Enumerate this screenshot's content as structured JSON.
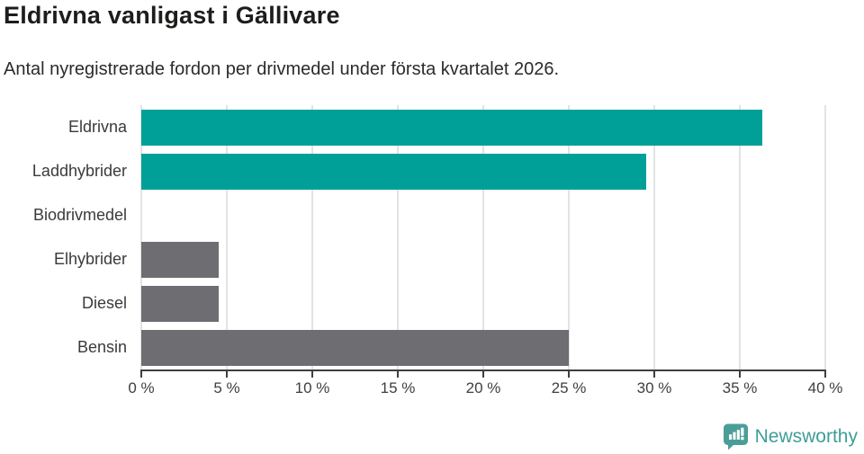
{
  "header": {
    "title": "Eldrivna vanligast i Gällivare",
    "subtitle": "Antal nyregistrerade fordon per drivmedel under första kvartalet 2026."
  },
  "chart_data": {
    "type": "bar",
    "orientation": "horizontal",
    "title": "Eldrivna vanligast i Gällivare",
    "subtitle": "Antal nyregistrerade fordon per drivmedel under första kvartalet 2026.",
    "categories": [
      "Eldrivna",
      "Laddhybrider",
      "Biodrivmedel",
      "Elhybrider",
      "Diesel",
      "Bensin"
    ],
    "values": [
      36.3,
      29.5,
      0,
      4.5,
      4.5,
      25
    ],
    "unit": "%",
    "bar_colors": [
      "#00a099",
      "#00a099",
      "#6d6d72",
      "#6d6d72",
      "#6d6d72",
      "#6d6d72"
    ],
    "xlim": [
      0,
      40
    ],
    "x_ticks": [
      0,
      5,
      10,
      15,
      20,
      25,
      30,
      35,
      40
    ],
    "x_tick_labels": [
      "0 %",
      "5 %",
      "10 %",
      "15 %",
      "20 %",
      "25 %",
      "30 %",
      "35 %",
      "40 %"
    ],
    "grid": "vertical",
    "legend": "none",
    "colors": {
      "highlight": "#00a099",
      "default": "#6d6d72",
      "gridline": "#e3e3e3",
      "axis": "#3f3f3f",
      "category_label": "#3a3a3a"
    }
  },
  "footer": {
    "brand": "Newsworthy",
    "brand_color": "#3f9e97",
    "logo_icon": "newsworthy-speech-bubble-chart-icon",
    "logo_color": "#4a9e98"
  }
}
